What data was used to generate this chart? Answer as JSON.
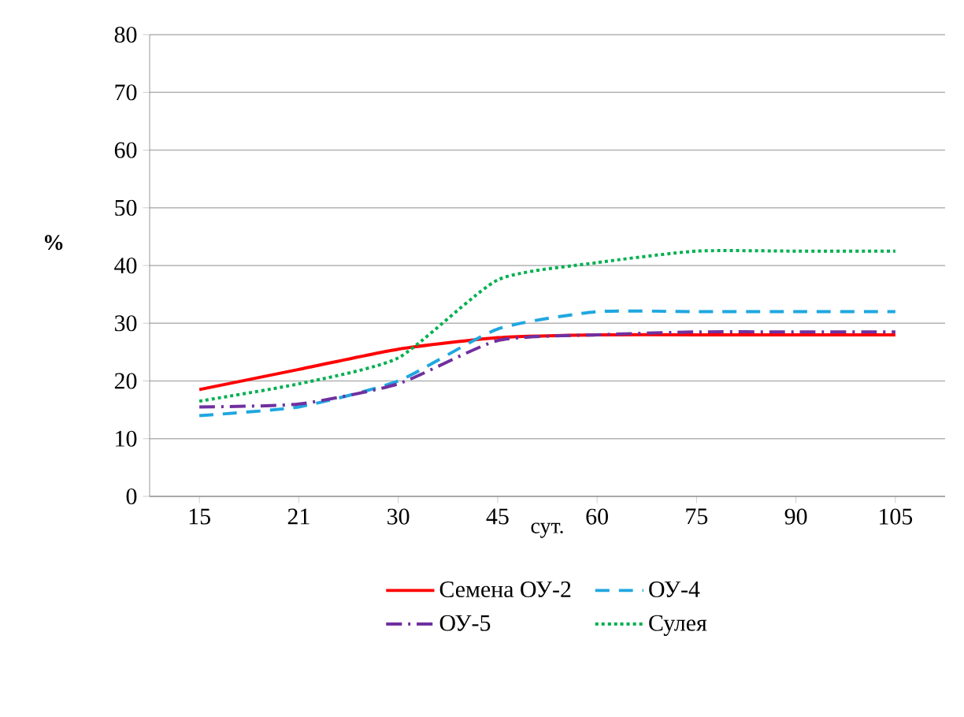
{
  "chart_data": {
    "type": "line",
    "xlabel": "сут.",
    "ylabel": "%",
    "categories": [
      "15",
      "21",
      "30",
      "45",
      "60",
      "75",
      "90",
      "105"
    ],
    "ylim": [
      0,
      80
    ],
    "yticks": [
      0,
      10,
      20,
      30,
      40,
      50,
      60,
      70,
      80
    ],
    "grid": "y",
    "legend": "bottom",
    "marker": "none",
    "series": [
      {
        "name": "Семена ОУ-2",
        "color": "#ff0000",
        "line_style": "solid",
        "values": [
          18.5,
          22,
          25.5,
          27.5,
          28,
          28,
          28,
          28
        ]
      },
      {
        "name": "ОУ-4",
        "color": "#1fa7e0",
        "line_style": "dashed",
        "values": [
          14,
          15.5,
          20,
          29,
          32,
          32,
          32,
          32
        ]
      },
      {
        "name": "ОУ-5",
        "color": "#7030a0",
        "line_style": "dashdot",
        "values": [
          15.5,
          16,
          19.5,
          27,
          28,
          28.5,
          28.5,
          28.5
        ]
      },
      {
        "name": "Сулея",
        "color": "#00b050",
        "line_style": "dotted",
        "values": [
          16.5,
          19.5,
          24,
          37.5,
          40.5,
          42.5,
          42.5,
          42.5
        ]
      }
    ]
  }
}
